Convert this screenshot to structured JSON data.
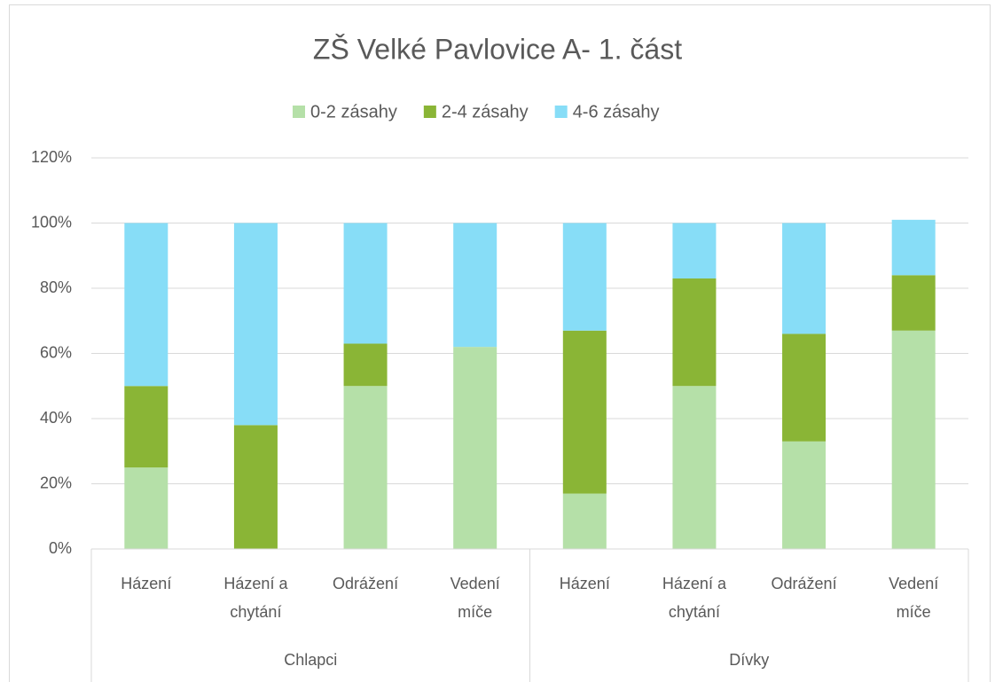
{
  "chart_data": {
    "type": "stacked_bar",
    "title": "ZŠ Velké Pavlovice A- 1. část",
    "groups": [
      {
        "label": "Chlapci",
        "categories": [
          "Házení",
          "Házení a chytání",
          "Odrážení",
          "Vedení míče"
        ]
      },
      {
        "label": "Dívky",
        "categories": [
          "Házení",
          "Házení a chytání",
          "Odrážení",
          "Vedení míče"
        ]
      }
    ],
    "series": [
      {
        "name": "0-2 zásahy",
        "color": "#b5e0a8",
        "values": [
          25,
          0,
          50,
          62,
          17,
          50,
          33,
          67
        ]
      },
      {
        "name": "2-4 zásahy",
        "color": "#8ab536",
        "values": [
          25,
          38,
          13,
          0,
          50,
          33,
          33,
          17
        ]
      },
      {
        "name": "4-6 zásahy",
        "color": "#87ddf7",
        "values": [
          50,
          62,
          37,
          38,
          33,
          17,
          34,
          17
        ]
      }
    ],
    "ylim": [
      0,
      120
    ],
    "yticks": [
      {
        "value": 0,
        "label": "0%"
      },
      {
        "value": 20,
        "label": "20%"
      },
      {
        "value": 40,
        "label": "40%"
      },
      {
        "value": 60,
        "label": "60%"
      },
      {
        "value": 80,
        "label": "80%"
      },
      {
        "value": 100,
        "label": "100%"
      },
      {
        "value": 120,
        "label": "120%"
      }
    ],
    "grid": true,
    "legend": "top"
  }
}
